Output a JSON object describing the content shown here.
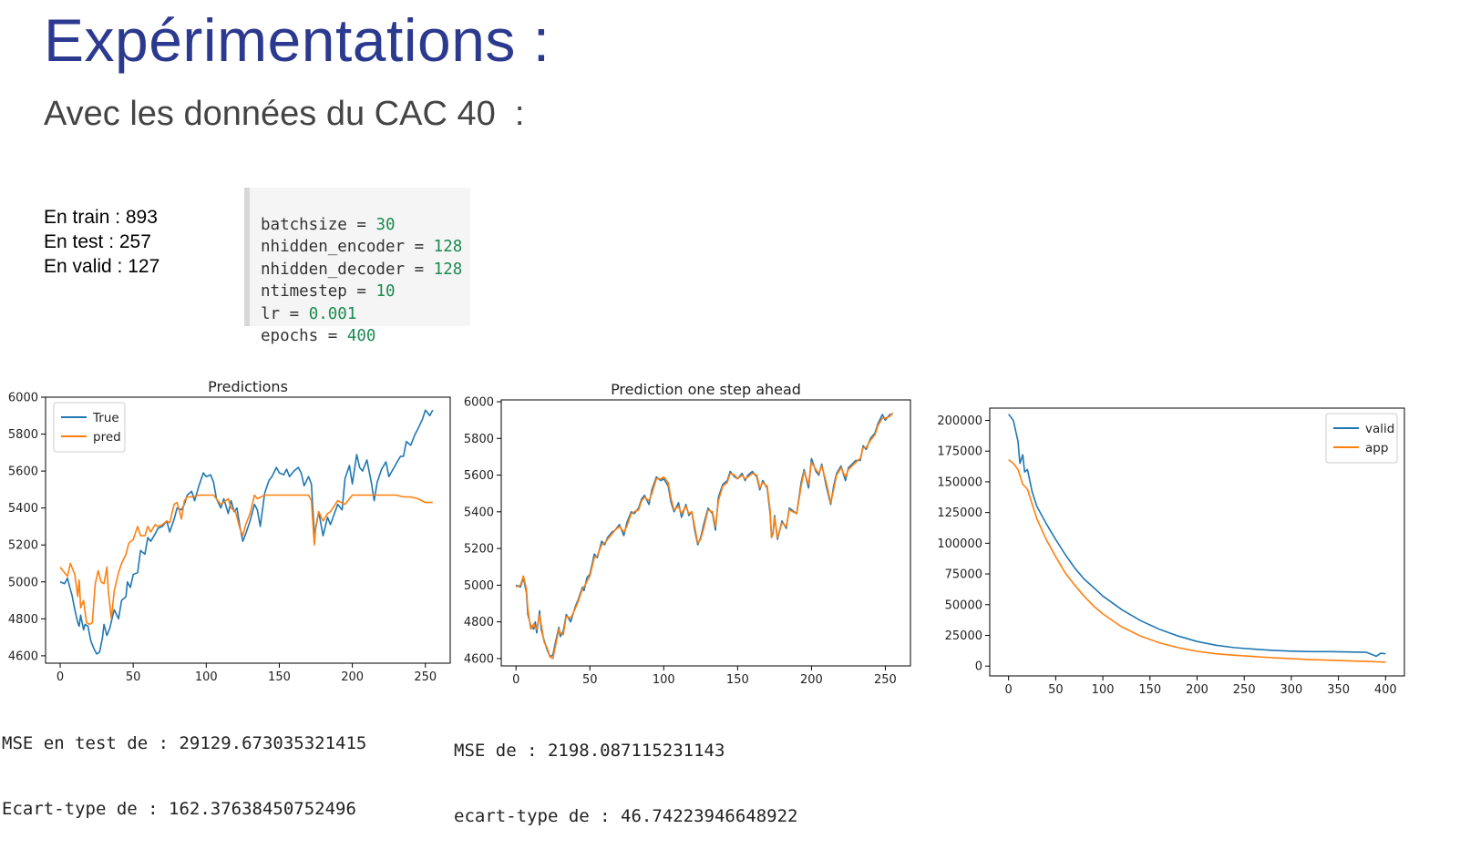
{
  "slide": {
    "title": "Expérimentations :",
    "subtitle": "Avec les données du CAC 40  :"
  },
  "dataset": {
    "lines": [
      "En train : 893",
      "En test : 257",
      "En valid : 127"
    ]
  },
  "params": [
    {
      "name": "batchsize",
      "value": "30"
    },
    {
      "name": "nhidden_encoder",
      "value": "128"
    },
    {
      "name": "nhidden_decoder",
      "value": "128"
    },
    {
      "name": "ntimestep",
      "value": "10"
    },
    {
      "name": "lr",
      "value": "0.001"
    },
    {
      "name": "epochs",
      "value": "400"
    }
  ],
  "metrics": {
    "chart1": [
      "MSE en test de : 29129.673035321415",
      "Ecart-type de : 162.37638450752496"
    ],
    "chart2": [
      "MSE de : 2198.087115231143",
      "ecart-type de : 46.74223946648922"
    ]
  },
  "colors": {
    "blue": "#1f77b4",
    "orange": "#ff7f0e",
    "title": "#2b3a8f"
  },
  "chart_data": [
    {
      "type": "line",
      "title": "Predictions",
      "xlim": [
        -10,
        267
      ],
      "ylim": [
        4560,
        6000
      ],
      "xticks": [
        0,
        50,
        100,
        150,
        200,
        250
      ],
      "yticks": [
        4600,
        4800,
        5000,
        5200,
        5400,
        5600,
        5800,
        6000
      ],
      "legend": "top-left",
      "series": [
        {
          "name": "True",
          "color": "#1f77b4",
          "x": [
            0,
            3,
            5,
            7,
            8,
            10,
            12,
            13,
            14,
            16,
            17,
            19,
            21,
            23,
            25,
            27,
            29,
            30,
            32,
            34,
            37,
            40,
            42,
            45,
            46,
            48,
            50,
            53,
            55,
            58,
            60,
            62,
            65,
            67,
            70,
            73,
            75,
            78,
            80,
            83,
            85,
            87,
            90,
            92,
            95,
            98,
            100,
            103,
            105,
            107,
            110,
            112,
            115,
            117,
            119,
            121,
            123,
            125,
            127,
            130,
            133,
            135,
            137,
            140,
            143,
            145,
            148,
            150,
            153,
            155,
            157,
            160,
            163,
            165,
            167,
            170,
            172,
            173,
            174,
            175,
            177,
            180,
            183,
            185,
            190,
            193,
            195,
            198,
            200,
            203,
            205,
            207,
            210,
            213,
            215,
            217,
            220,
            223,
            225,
            230,
            233,
            235,
            237,
            240,
            243,
            245,
            248,
            250,
            253,
            255
          ],
          "y": [
            5000,
            4990,
            5020,
            4960,
            4930,
            4850,
            4780,
            4760,
            4820,
            4740,
            4770,
            4760,
            4680,
            4640,
            4610,
            4620,
            4700,
            4770,
            4710,
            4750,
            4850,
            4800,
            4900,
            4920,
            5000,
            4970,
            5040,
            5050,
            5170,
            5150,
            5240,
            5220,
            5260,
            5290,
            5300,
            5330,
            5270,
            5340,
            5400,
            5390,
            5420,
            5470,
            5490,
            5440,
            5520,
            5590,
            5570,
            5580,
            5540,
            5450,
            5400,
            5450,
            5370,
            5440,
            5380,
            5400,
            5300,
            5220,
            5260,
            5330,
            5420,
            5390,
            5300,
            5480,
            5550,
            5570,
            5620,
            5590,
            5580,
            5610,
            5570,
            5600,
            5620,
            5590,
            5520,
            5570,
            5530,
            5390,
            5260,
            5290,
            5380,
            5250,
            5350,
            5310,
            5420,
            5390,
            5560,
            5630,
            5530,
            5690,
            5620,
            5600,
            5660,
            5540,
            5440,
            5540,
            5610,
            5650,
            5570,
            5640,
            5680,
            5680,
            5760,
            5740,
            5800,
            5830,
            5880,
            5930,
            5900,
            5930
          ]
        },
        {
          "name": "pred",
          "color": "#ff7f0e",
          "x": [
            0,
            3,
            5,
            7,
            10,
            12,
            13,
            14,
            16,
            18,
            20,
            22,
            24,
            26,
            28,
            30,
            32,
            33,
            35,
            37,
            40,
            42,
            45,
            47,
            50,
            53,
            55,
            58,
            60,
            62,
            65,
            67,
            70,
            73,
            75,
            78,
            80,
            83,
            85,
            87,
            90,
            95,
            100,
            105,
            110,
            115,
            117,
            120,
            123,
            125,
            127,
            130,
            133,
            135,
            140,
            145,
            150,
            155,
            160,
            165,
            170,
            172,
            174,
            175,
            177,
            180,
            183,
            185,
            190,
            195,
            200,
            205,
            210,
            215,
            220,
            225,
            230,
            235,
            240,
            245,
            250,
            255
          ],
          "y": [
            5080,
            5050,
            5030,
            5100,
            5040,
            4920,
            5010,
            4860,
            4900,
            4780,
            4770,
            4780,
            4990,
            5060,
            5000,
            4990,
            5080,
            4950,
            4800,
            4950,
            5050,
            5100,
            5150,
            5210,
            5230,
            5300,
            5250,
            5250,
            5300,
            5270,
            5310,
            5300,
            5310,
            5330,
            5320,
            5420,
            5430,
            5340,
            5440,
            5460,
            5460,
            5470,
            5470,
            5470,
            5420,
            5450,
            5400,
            5380,
            5290,
            5250,
            5310,
            5370,
            5470,
            5450,
            5470,
            5470,
            5470,
            5470,
            5470,
            5470,
            5470,
            5440,
            5200,
            5300,
            5380,
            5330,
            5370,
            5380,
            5440,
            5420,
            5470,
            5470,
            5470,
            5470,
            5470,
            5470,
            5470,
            5460,
            5460,
            5450,
            5430,
            5430
          ]
        }
      ]
    },
    {
      "type": "line",
      "title": "Prediction one step ahead",
      "xlim": [
        -10,
        267
      ],
      "ylim": [
        4560,
        6010
      ],
      "xticks": [
        0,
        50,
        100,
        150,
        200,
        250
      ],
      "yticks": [
        4600,
        4800,
        5000,
        5200,
        5400,
        5600,
        5800,
        6000
      ],
      "series": [
        {
          "color": "#1f77b4",
          "x": [
            0,
            3,
            5,
            7,
            8,
            10,
            12,
            13,
            14,
            16,
            17,
            19,
            21,
            23,
            25,
            27,
            29,
            30,
            32,
            34,
            37,
            40,
            42,
            45,
            46,
            48,
            50,
            53,
            55,
            58,
            60,
            62,
            65,
            67,
            70,
            73,
            75,
            78,
            80,
            83,
            85,
            87,
            90,
            92,
            95,
            98,
            100,
            103,
            105,
            107,
            110,
            112,
            115,
            117,
            119,
            121,
            123,
            125,
            127,
            130,
            133,
            135,
            137,
            140,
            143,
            145,
            148,
            150,
            153,
            155,
            157,
            160,
            163,
            165,
            167,
            170,
            172,
            173,
            174,
            175,
            177,
            180,
            183,
            185,
            190,
            193,
            195,
            198,
            200,
            203,
            205,
            207,
            210,
            213,
            215,
            217,
            220,
            223,
            225,
            230,
            233,
            235,
            237,
            240,
            243,
            245,
            248,
            250,
            253,
            255
          ],
          "y": [
            5000,
            4990,
            5040,
            4960,
            4840,
            4780,
            4760,
            4800,
            4740,
            4860,
            4760,
            4700,
            4650,
            4610,
            4620,
            4700,
            4770,
            4720,
            4750,
            4840,
            4800,
            4880,
            4920,
            4990,
            4970,
            5040,
            5060,
            5170,
            5150,
            5240,
            5220,
            5260,
            5290,
            5300,
            5330,
            5270,
            5340,
            5400,
            5390,
            5420,
            5470,
            5490,
            5440,
            5520,
            5590,
            5570,
            5580,
            5540,
            5450,
            5400,
            5450,
            5370,
            5440,
            5380,
            5400,
            5300,
            5220,
            5260,
            5330,
            5420,
            5390,
            5300,
            5480,
            5550,
            5570,
            5620,
            5590,
            5580,
            5610,
            5570,
            5600,
            5620,
            5590,
            5520,
            5570,
            5530,
            5390,
            5260,
            5290,
            5380,
            5250,
            5350,
            5310,
            5420,
            5390,
            5560,
            5630,
            5530,
            5690,
            5620,
            5600,
            5660,
            5540,
            5440,
            5540,
            5610,
            5650,
            5570,
            5640,
            5680,
            5680,
            5760,
            5740,
            5800,
            5830,
            5880,
            5930,
            5900,
            5930,
            5930
          ]
        },
        {
          "color": "#ff7f0e",
          "x": [
            0,
            3,
            5,
            7,
            8,
            10,
            12,
            13,
            14,
            16,
            17,
            19,
            21,
            23,
            25,
            27,
            29,
            30,
            32,
            34,
            37,
            40,
            42,
            45,
            46,
            48,
            50,
            53,
            55,
            58,
            60,
            62,
            65,
            67,
            70,
            73,
            75,
            78,
            80,
            83,
            85,
            87,
            90,
            92,
            95,
            98,
            100,
            103,
            105,
            107,
            110,
            112,
            115,
            117,
            119,
            121,
            123,
            125,
            127,
            130,
            133,
            135,
            137,
            140,
            143,
            145,
            148,
            150,
            153,
            155,
            157,
            160,
            163,
            165,
            167,
            170,
            172,
            173,
            174,
            175,
            177,
            180,
            183,
            185,
            190,
            193,
            195,
            198,
            200,
            203,
            205,
            207,
            210,
            213,
            215,
            217,
            220,
            223,
            225,
            230,
            233,
            235,
            237,
            240,
            243,
            245,
            248,
            250,
            253,
            255
          ],
          "y": [
            4990,
            5000,
            5050,
            4980,
            4870,
            4760,
            4790,
            4770,
            4760,
            4840,
            4790,
            4690,
            4660,
            4610,
            4600,
            4680,
            4760,
            4740,
            4730,
            4830,
            4820,
            4870,
            4910,
            4980,
            4990,
            5020,
            5050,
            5150,
            5160,
            5220,
            5230,
            5250,
            5280,
            5300,
            5320,
            5290,
            5320,
            5390,
            5400,
            5410,
            5460,
            5480,
            5460,
            5500,
            5580,
            5580,
            5590,
            5560,
            5470,
            5410,
            5430,
            5390,
            5430,
            5390,
            5400,
            5320,
            5230,
            5250,
            5310,
            5410,
            5400,
            5320,
            5460,
            5540,
            5560,
            5610,
            5600,
            5580,
            5600,
            5580,
            5590,
            5610,
            5600,
            5530,
            5560,
            5540,
            5410,
            5260,
            5280,
            5370,
            5260,
            5340,
            5320,
            5410,
            5390,
            5540,
            5620,
            5550,
            5670,
            5630,
            5610,
            5650,
            5560,
            5450,
            5520,
            5600,
            5640,
            5590,
            5630,
            5670,
            5690,
            5750,
            5750,
            5790,
            5820,
            5870,
            5910,
            5910,
            5920,
            5940
          ]
        }
      ]
    },
    {
      "type": "line",
      "title": "",
      "xlim": [
        -20,
        420
      ],
      "ylim": [
        -8000,
        210000
      ],
      "xticks": [
        0,
        50,
        100,
        150,
        200,
        250,
        300,
        350,
        400
      ],
      "yticks": [
        0,
        25000,
        50000,
        75000,
        100000,
        125000,
        150000,
        175000,
        200000
      ],
      "legend": "top-right",
      "series": [
        {
          "name": "valid",
          "color": "#1f77b4",
          "x": [
            0,
            5,
            10,
            12,
            15,
            17,
            20,
            25,
            30,
            40,
            50,
            60,
            70,
            80,
            90,
            100,
            120,
            140,
            160,
            180,
            200,
            220,
            240,
            260,
            280,
            300,
            320,
            340,
            360,
            380,
            390,
            395,
            400
          ],
          "y": [
            205000,
            200000,
            183000,
            165000,
            172000,
            158000,
            160000,
            142000,
            130000,
            116000,
            103000,
            91000,
            80000,
            71000,
            64000,
            57000,
            46000,
            37000,
            30000,
            24500,
            20000,
            17000,
            15000,
            13800,
            12800,
            12200,
            11800,
            11800,
            11500,
            11200,
            8000,
            10500,
            10000
          ]
        },
        {
          "name": "app",
          "color": "#ff7f0e",
          "x": [
            0,
            5,
            10,
            15,
            20,
            25,
            30,
            40,
            50,
            60,
            70,
            80,
            90,
            100,
            120,
            140,
            160,
            180,
            200,
            220,
            240,
            260,
            280,
            300,
            320,
            340,
            360,
            380,
            390,
            400
          ],
          "y": [
            168000,
            165000,
            160000,
            148000,
            144000,
            132000,
            120000,
            103000,
            89000,
            76000,
            66000,
            57000,
            49000,
            42500,
            32000,
            24500,
            19000,
            15000,
            12000,
            10000,
            8800,
            7800,
            6800,
            6000,
            5300,
            4800,
            4300,
            3800,
            3500,
            3300
          ]
        }
      ]
    }
  ]
}
